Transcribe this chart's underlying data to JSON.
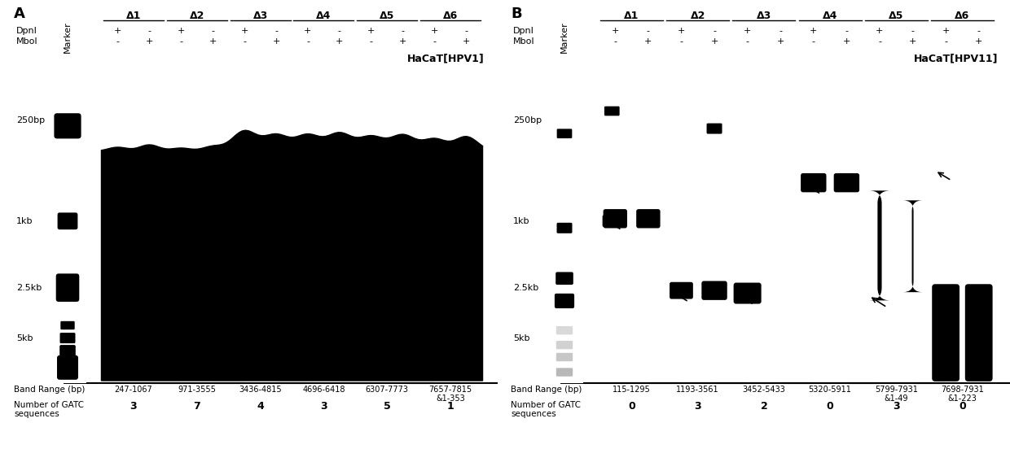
{
  "panel_A_label": "A",
  "panel_B_label": "B",
  "title_A": "HaCaT[HPV1]",
  "title_B": "HaCaT[HPV11]",
  "dpni_row": "DpnI",
  "mboi_row": "MboI",
  "marker_label": "Marker",
  "delta_labels": [
    "Δ1",
    "Δ2",
    "Δ3",
    "Δ4",
    "Δ5",
    "Δ6"
  ],
  "dpni_signs": [
    "+",
    "-",
    "+",
    "-",
    "+",
    "-",
    "+",
    "-",
    "+",
    "-",
    "+",
    "-"
  ],
  "mboi_signs": [
    "-",
    "+",
    "-",
    "+",
    "-",
    "+",
    "-",
    "+",
    "-",
    "+",
    "-",
    "+"
  ],
  "band_range_label": "Band Range (bp)",
  "band_ranges_A": [
    "247-1067",
    "971-3555",
    "3436-4815",
    "4696-6418",
    "6307-7773",
    "7657-7815\n&1-353"
  ],
  "gatc_label_line1": "Number of GATC",
  "gatc_label_line2": "sequences",
  "gatc_values_A": [
    "3",
    "7",
    "4",
    "3",
    "5",
    "1"
  ],
  "band_ranges_B": [
    "115-1295",
    "1193-3561",
    "3452-5433",
    "5320-5911",
    "5799-7931\n&1-49",
    "7698-7931\n&1-223"
  ],
  "gatc_values_B": [
    "0",
    "3",
    "2",
    "0",
    "3",
    "0"
  ],
  "bg_color": "#ffffff"
}
